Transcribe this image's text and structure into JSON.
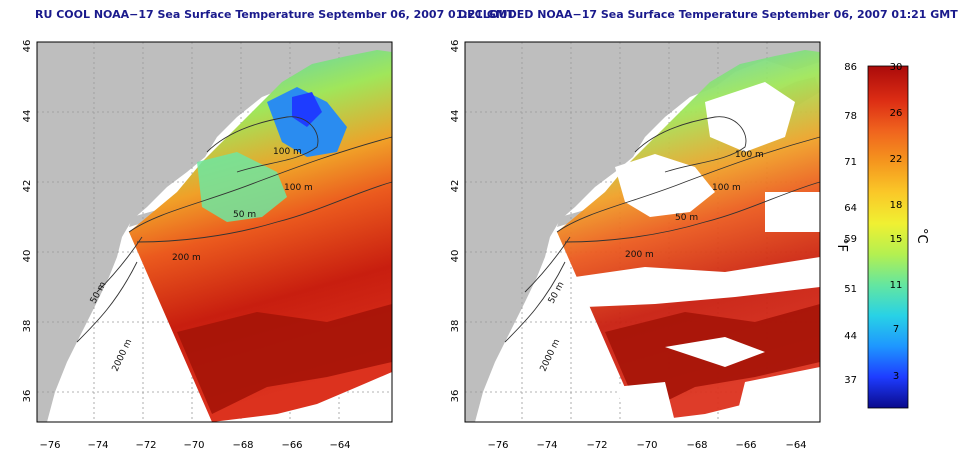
{
  "maps": [
    {
      "title": "RU COOL NOAA−17 Sea Surface Temperature September 06, 2007 01:21 GMT",
      "contour_labels": [
        "100 m",
        "100 m",
        "50 m",
        "200 m",
        "50 m",
        "2000 m"
      ]
    },
    {
      "title": "DECLOUDED NOAA−17 Sea Surface Temperature September 06, 2007 01:21 GMT",
      "contour_labels": [
        "100 m",
        "100 m",
        "50 m",
        "200 m",
        "50 m",
        "2000 m"
      ]
    }
  ],
  "axes": {
    "x_ticks": [
      "−76",
      "−74",
      "−72",
      "−70",
      "−68",
      "−66",
      "−64"
    ],
    "y_ticks": [
      "46",
      "44",
      "42",
      "40",
      "38",
      "36"
    ]
  },
  "colorbar": {
    "fahrenheit_unit": "°F",
    "celsius_unit": "°C",
    "fahrenheit_ticks": [
      "86",
      "78",
      "71",
      "64",
      "59",
      "51",
      "44",
      "37"
    ],
    "celsius_ticks": [
      "30",
      "26",
      "22",
      "18",
      "15",
      "11",
      "7",
      "3"
    ],
    "colors": [
      "#0a0a8c",
      "#1e3cff",
      "#1e96ff",
      "#28d2e6",
      "#64e6a0",
      "#b4f050",
      "#f0f032",
      "#fac828",
      "#f5961e",
      "#f0641e",
      "#dc2d14",
      "#aa0a0a"
    ]
  }
}
